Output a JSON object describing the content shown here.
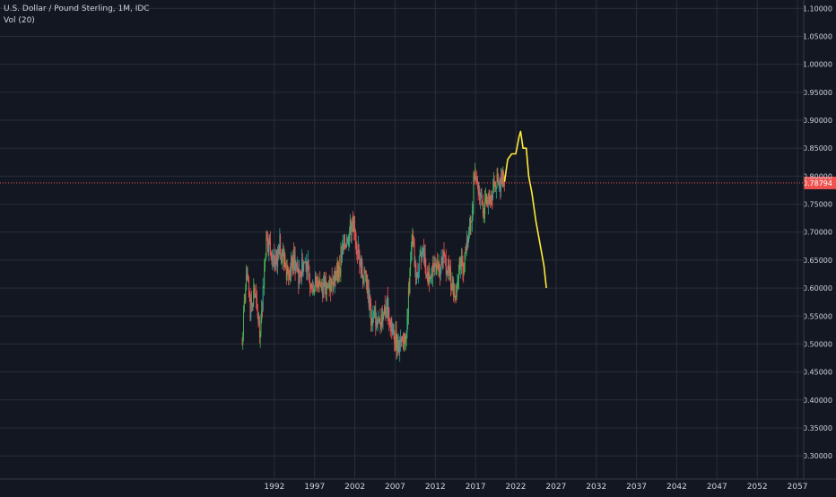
{
  "legend": {
    "symbol_title": "U.S. Dollar / Pound Sterling, 1M, IDC",
    "indicator": "Vol (20)"
  },
  "colors": {
    "background": "#131722",
    "grid": "#2a2e39",
    "axis_text": "#d1d4dc",
    "up": "#26a69a",
    "up_bright": "#4caf50",
    "down": "#ef5350",
    "projection": "#ffeb3b",
    "price_line": "#ef5350",
    "price_tag": "#ef5350"
  },
  "chart_data": {
    "type": "candlestick",
    "title": "",
    "xlabel": "",
    "ylabel": "",
    "grid": true,
    "x_range": [
      1988.0,
      2057.0
    ],
    "y_range": [
      0.2585,
      1.115
    ],
    "x_ticks": [
      "1992",
      "1997",
      "2002",
      "2007",
      "2012",
      "2017",
      "2022",
      "2027",
      "2032",
      "2037",
      "2042",
      "2047",
      "2052",
      "2057"
    ],
    "y_ticks": [
      "1.10000",
      "1.05000",
      "1.00000",
      "0.95000",
      "0.90000",
      "0.85000",
      "0.80000",
      "0.75000",
      "0.70000",
      "0.65000",
      "0.60000",
      "0.55000",
      "0.50000",
      "0.45000",
      "0.40000",
      "0.35000",
      "0.30000"
    ],
    "current_price": 0.78794,
    "current_price_label": "0.78794",
    "price_path": [
      [
        1988.0,
        0.5
      ],
      [
        1988.3,
        0.58
      ],
      [
        1988.6,
        0.62
      ],
      [
        1989.0,
        0.56
      ],
      [
        1989.5,
        0.6
      ],
      [
        1989.9,
        0.55
      ],
      [
        1990.3,
        0.52
      ],
      [
        1990.6,
        0.6
      ],
      [
        1991.0,
        0.69
      ],
      [
        1991.4,
        0.68
      ],
      [
        1991.8,
        0.66
      ],
      [
        1992.2,
        0.64
      ],
      [
        1992.6,
        0.68
      ],
      [
        1993.0,
        0.66
      ],
      [
        1993.5,
        0.63
      ],
      [
        1994.0,
        0.64
      ],
      [
        1994.5,
        0.65
      ],
      [
        1995.0,
        0.62
      ],
      [
        1995.5,
        0.64
      ],
      [
        1996.0,
        0.65
      ],
      [
        1996.5,
        0.6
      ],
      [
        1997.0,
        0.61
      ],
      [
        1997.5,
        0.61
      ],
      [
        1998.0,
        0.6
      ],
      [
        1998.5,
        0.6
      ],
      [
        1999.0,
        0.61
      ],
      [
        1999.5,
        0.62
      ],
      [
        2000.0,
        0.63
      ],
      [
        2000.5,
        0.67
      ],
      [
        2001.0,
        0.69
      ],
      [
        2001.5,
        0.71
      ],
      [
        2002.0,
        0.7
      ],
      [
        2002.5,
        0.66
      ],
      [
        2003.0,
        0.62
      ],
      [
        2003.5,
        0.61
      ],
      [
        2004.0,
        0.55
      ],
      [
        2004.5,
        0.55
      ],
      [
        2005.0,
        0.53
      ],
      [
        2005.5,
        0.56
      ],
      [
        2006.0,
        0.57
      ],
      [
        2006.5,
        0.53
      ],
      [
        2007.0,
        0.51
      ],
      [
        2007.5,
        0.49
      ],
      [
        2008.0,
        0.5
      ],
      [
        2008.4,
        0.51
      ],
      [
        2008.8,
        0.62
      ],
      [
        2009.2,
        0.69
      ],
      [
        2009.6,
        0.62
      ],
      [
        2010.0,
        0.64
      ],
      [
        2010.5,
        0.66
      ],
      [
        2011.0,
        0.62
      ],
      [
        2011.5,
        0.63
      ],
      [
        2012.0,
        0.64
      ],
      [
        2012.5,
        0.63
      ],
      [
        2013.0,
        0.65
      ],
      [
        2013.5,
        0.64
      ],
      [
        2014.0,
        0.61
      ],
      [
        2014.5,
        0.59
      ],
      [
        2015.0,
        0.65
      ],
      [
        2015.5,
        0.64
      ],
      [
        2016.0,
        0.68
      ],
      [
        2016.5,
        0.72
      ],
      [
        2016.8,
        0.8
      ],
      [
        2017.0,
        0.81
      ],
      [
        2017.5,
        0.77
      ],
      [
        2018.0,
        0.74
      ],
      [
        2018.5,
        0.76
      ],
      [
        2019.0,
        0.77
      ],
      [
        2019.5,
        0.79
      ],
      [
        2020.0,
        0.78
      ],
      [
        2020.3,
        0.8
      ],
      [
        2020.6,
        0.79
      ]
    ],
    "projection": [
      [
        2020.6,
        0.79
      ],
      [
        2021.0,
        0.83
      ],
      [
        2021.5,
        0.84
      ],
      [
        2022.0,
        0.84
      ],
      [
        2022.4,
        0.87
      ],
      [
        2022.6,
        0.88
      ],
      [
        2022.9,
        0.85
      ],
      [
        2023.3,
        0.85
      ],
      [
        2023.6,
        0.8
      ],
      [
        2024.0,
        0.77
      ],
      [
        2024.5,
        0.72
      ],
      [
        2025.0,
        0.68
      ],
      [
        2025.5,
        0.64
      ],
      [
        2025.8,
        0.6
      ]
    ]
  }
}
